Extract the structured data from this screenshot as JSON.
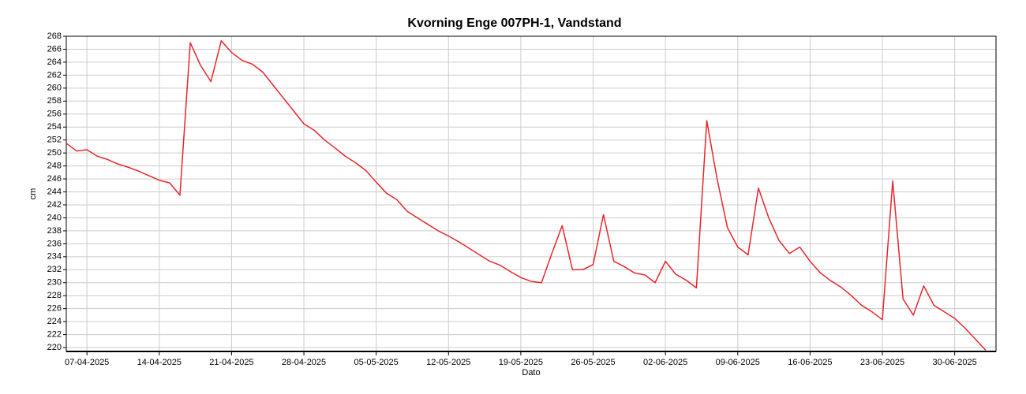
{
  "chart_data": {
    "type": "line",
    "title": "Kvorning Enge 007PH-1, Vandstand",
    "xlabel": "Dato",
    "ylabel": "cm",
    "x": [
      "05-04-2025",
      "06-04-2025",
      "07-04-2025",
      "08-04-2025",
      "09-04-2025",
      "10-04-2025",
      "11-04-2025",
      "12-04-2025",
      "13-04-2025",
      "14-04-2025",
      "15-04-2025",
      "16-04-2025",
      "17-04-2025",
      "18-04-2025",
      "19-04-2025",
      "20-04-2025",
      "21-04-2025",
      "22-04-2025",
      "23-04-2025",
      "24-04-2025",
      "25-04-2025",
      "26-04-2025",
      "27-04-2025",
      "28-04-2025",
      "29-04-2025",
      "30-04-2025",
      "01-05-2025",
      "02-05-2025",
      "03-05-2025",
      "04-05-2025",
      "05-05-2025",
      "06-05-2025",
      "07-05-2025",
      "08-05-2025",
      "09-05-2025",
      "10-05-2025",
      "11-05-2025",
      "12-05-2025",
      "13-05-2025",
      "14-05-2025",
      "15-05-2025",
      "16-05-2025",
      "17-05-2025",
      "18-05-2025",
      "19-05-2025",
      "20-05-2025",
      "21-05-2025",
      "22-05-2025",
      "23-05-2025",
      "24-05-2025",
      "25-05-2025",
      "26-05-2025",
      "27-05-2025",
      "28-05-2025",
      "29-05-2025",
      "30-05-2025",
      "31-05-2025",
      "01-06-2025",
      "02-06-2025",
      "03-06-2025",
      "04-06-2025",
      "05-06-2025",
      "06-06-2025",
      "07-06-2025",
      "08-06-2025",
      "09-06-2025",
      "10-06-2025",
      "11-06-2025",
      "12-06-2025",
      "13-06-2025",
      "14-06-2025",
      "15-06-2025",
      "16-06-2025",
      "17-06-2025",
      "18-06-2025",
      "19-06-2025",
      "20-06-2025",
      "21-06-2025",
      "22-06-2025",
      "23-06-2025",
      "24-06-2025",
      "25-06-2025",
      "26-06-2025",
      "27-06-2025",
      "28-06-2025",
      "29-06-2025",
      "30-06-2025",
      "01-07-2025",
      "02-07-2025",
      "03-07-2025"
    ],
    "series": [
      {
        "name": "Vandstand",
        "color": "#e8262b",
        "values": [
          251.5,
          250.3,
          250.5,
          249.5,
          249,
          248.3,
          247.8,
          247.2,
          246.5,
          245.8,
          245.4,
          243.5,
          267,
          263.5,
          261,
          267.3,
          265.5,
          264.3,
          263.7,
          262.5,
          260.5,
          258.5,
          256.5,
          254.5,
          253.5,
          252,
          250.8,
          249.5,
          248.5,
          247.3,
          245.5,
          243.8,
          242.8,
          241,
          240,
          239,
          238,
          237.2,
          236.3,
          235.3,
          234.3,
          233.3,
          232.7,
          231.7,
          230.8,
          230.2,
          230,
          234.5,
          238.8,
          232,
          232,
          232.8,
          240.5,
          233.3,
          232.5,
          231.5,
          231.2,
          230,
          233.3,
          231.3,
          230.4,
          229.2,
          255,
          246,
          238.5,
          235.5,
          234.3,
          244.6,
          240,
          236.5,
          234.5,
          235.5,
          233.3,
          231.5,
          230.3,
          229.3,
          228,
          226.5,
          225.5,
          224.3,
          245.7,
          227.5,
          225,
          229.5,
          226.5,
          225.5,
          224.5,
          223,
          221.3,
          219.6
        ]
      }
    ],
    "xlim": [
      "05-04-2025",
      "04-07-2025"
    ],
    "xticks": [
      "07-04-2025",
      "14-04-2025",
      "21-04-2025",
      "28-04-2025",
      "05-05-2025",
      "12-05-2025",
      "19-05-2025",
      "26-05-2025",
      "02-06-2025",
      "09-06-2025",
      "16-06-2025",
      "23-06-2025",
      "30-06-2025"
    ],
    "ylim": [
      219.4,
      268
    ],
    "yticks": [
      220,
      222,
      224,
      226,
      228,
      230,
      232,
      234,
      236,
      238,
      240,
      242,
      244,
      246,
      248,
      250,
      252,
      254,
      256,
      258,
      260,
      262,
      264,
      266,
      268
    ],
    "grid": true
  }
}
